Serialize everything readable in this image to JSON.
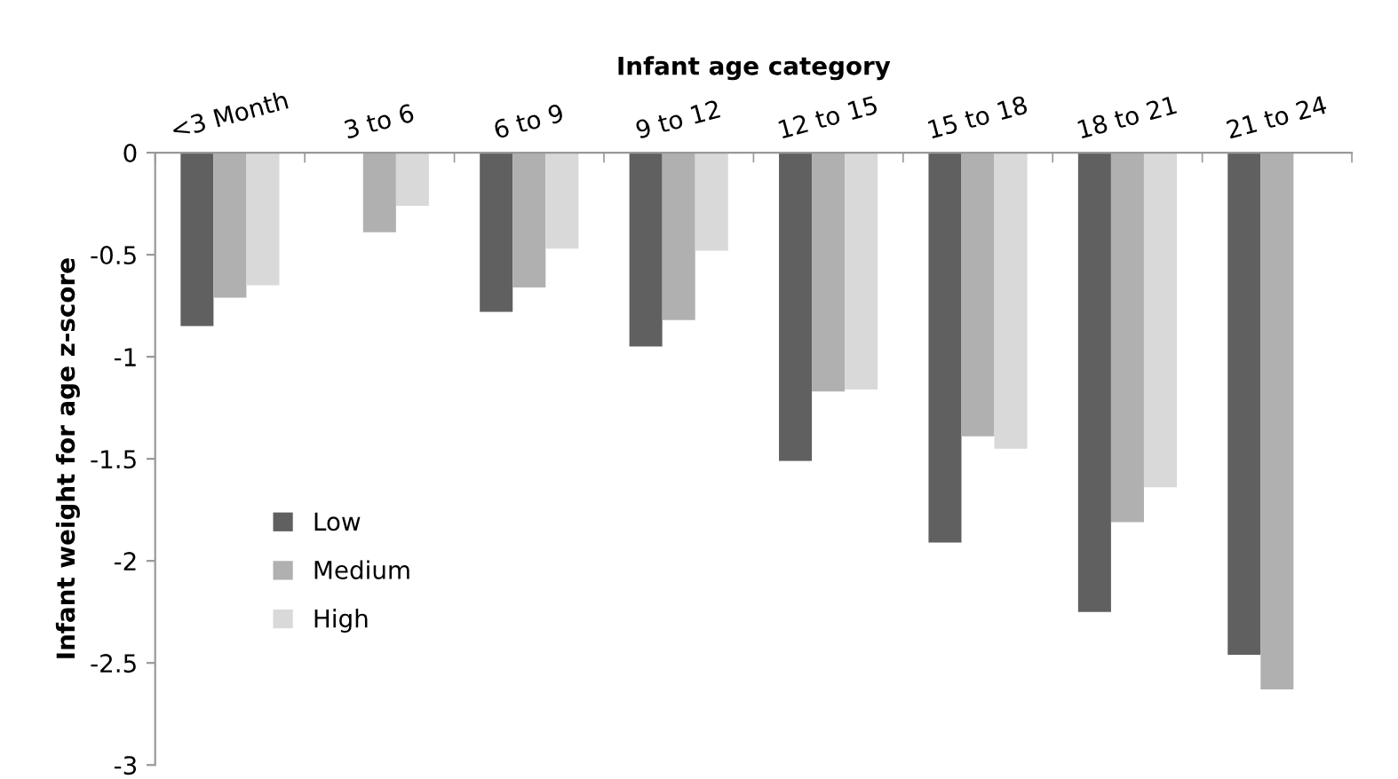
{
  "chart_data": {
    "type": "bar",
    "xlabel": "Infant age category",
    "ylabel": "Infant weight for age z-score",
    "categories": [
      "<3 Month",
      "3 to 6",
      "6 to 9",
      "9 to 12",
      "12 to 15",
      "15 to 18",
      "18 to 21",
      "21 to 24"
    ],
    "series": [
      {
        "name": "Low",
        "color": "#606060",
        "values": [
          -0.85,
          null,
          -0.78,
          -0.95,
          -1.51,
          -1.91,
          -2.25,
          -2.46
        ]
      },
      {
        "name": "Medium",
        "color": "#b0b0b0",
        "values": [
          -0.71,
          -0.39,
          -0.66,
          -0.82,
          -1.17,
          -1.39,
          -1.81,
          -2.63
        ]
      },
      {
        "name": "High",
        "color": "#d9d9d9",
        "values": [
          -0.65,
          -0.26,
          -0.47,
          -0.48,
          -1.16,
          -1.45,
          -1.64,
          null
        ]
      }
    ],
    "ylim": [
      -3,
      0
    ],
    "yticks": [
      -3,
      -2.5,
      -2,
      -1.5,
      -1,
      -0.5,
      0
    ],
    "grid": false,
    "legend": "lower left"
  }
}
